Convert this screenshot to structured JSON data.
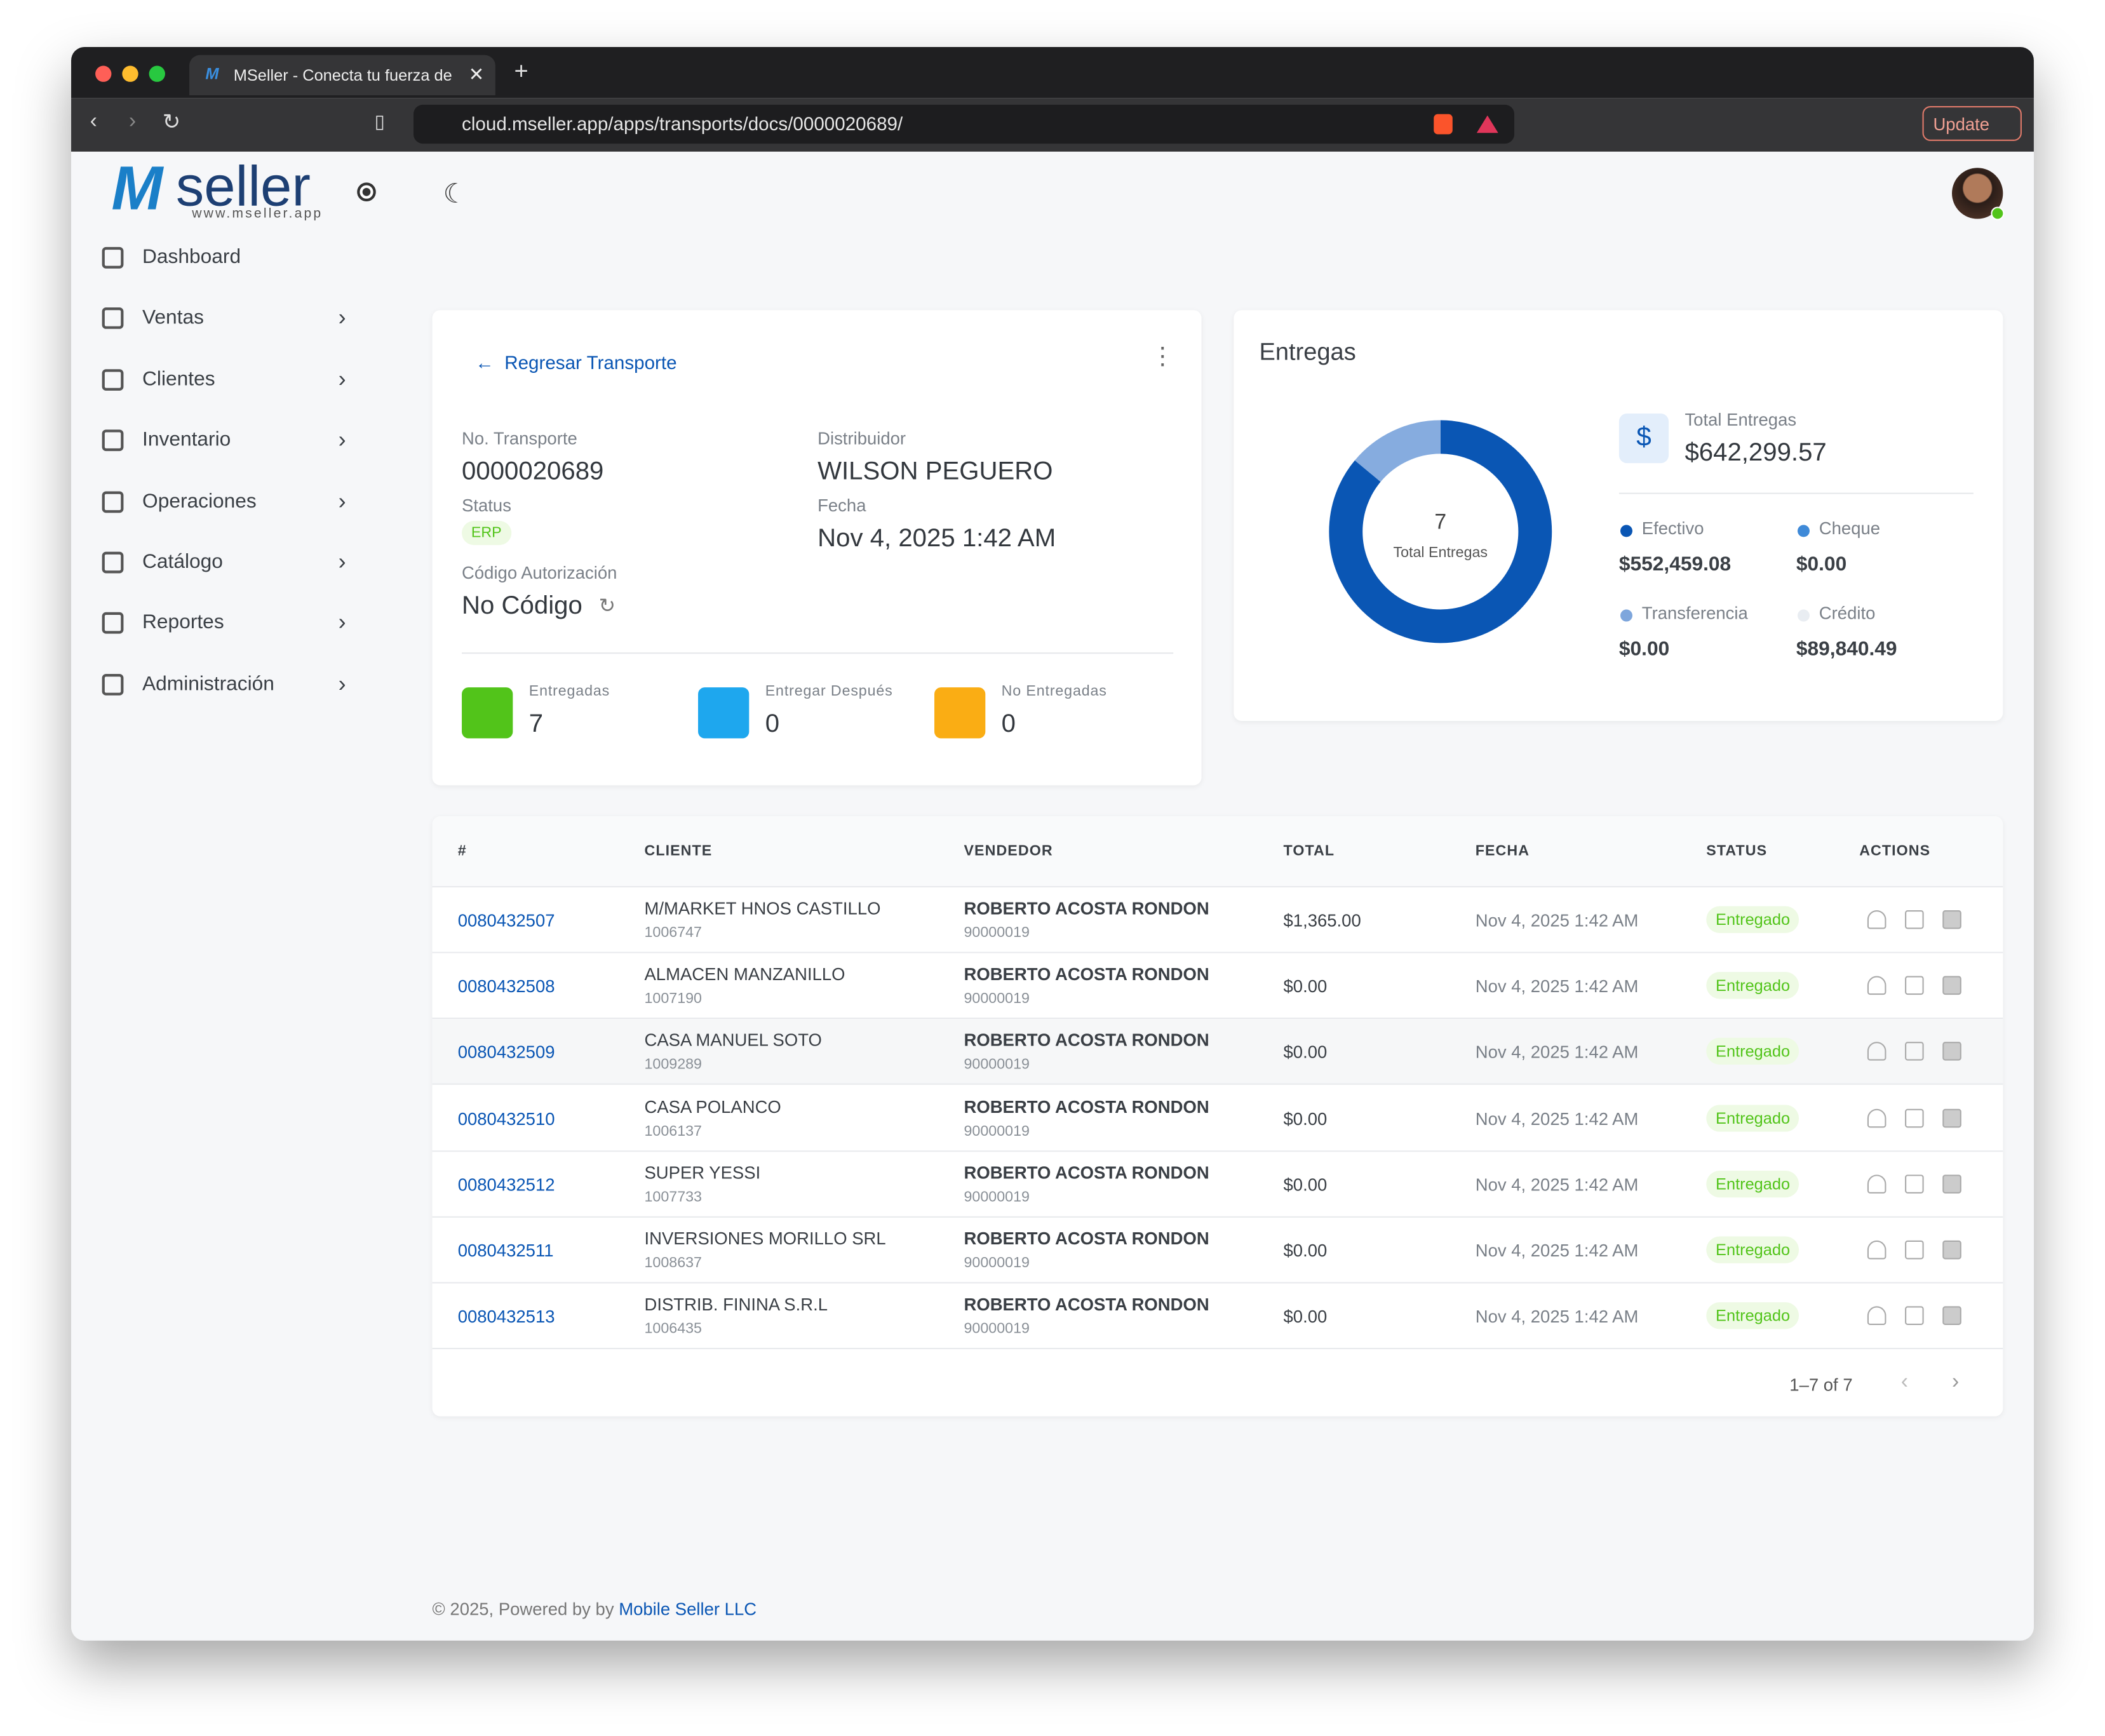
{
  "browser": {
    "tab_title": "MSeller - Conecta tu fuerza de",
    "url": "cloud.mseller.app/apps/transports/docs/0000020689/",
    "update": "Update"
  },
  "logo": {
    "mark": "M",
    "text": "seller",
    "site": "www.mseller.app"
  },
  "sidebar": [
    "Dashboard",
    "Ventas",
    "Clientes",
    "Inventario",
    "Operaciones",
    "Catálogo",
    "Reportes",
    "Administración"
  ],
  "transport": {
    "back": "Regresar Transporte",
    "number_label": "No. Transporte",
    "number": "0000020689",
    "distributor_label": "Distribuidor",
    "distributor": "WILSON PEGUERO",
    "status_label": "Status",
    "status": "ERP",
    "date_label": "Fecha",
    "date": "Nov 4, 2025 1:42 AM",
    "auth_label": "Código Autorización",
    "auth": "No Código",
    "stats": [
      {
        "label": "Entregadas",
        "value": 7,
        "color": "#52c41a"
      },
      {
        "label": "Entregar Después",
        "value": 0,
        "color": "#1ea7ee"
      },
      {
        "label": "No Entregadas",
        "value": 0,
        "color": "#faad14"
      }
    ]
  },
  "deliveries": {
    "title": "Entregas",
    "center_value": 7,
    "center_label": "Total Entregas",
    "total_label": "Total Entregas",
    "total": "$642,299.57",
    "methods": [
      {
        "name": "Efectivo",
        "color": "#0a56b4",
        "value": 552459.08,
        "label": "$552,459.08"
      },
      {
        "name": "Cheque",
        "color": "#3f8ad8",
        "value": 0,
        "label": "$0.00"
      },
      {
        "name": "Transferencia",
        "color": "#7ea6dc",
        "value": 0,
        "label": "$0.00"
      },
      {
        "name": "Crédito",
        "color": "#86acdf",
        "value": 89840.49,
        "label": "$89,840.49"
      }
    ]
  },
  "table": {
    "headers": [
      "#",
      "CLIENTE",
      "VENDEDOR",
      "TOTAL",
      "FECHA",
      "STATUS",
      "ACTIONS"
    ],
    "rows": [
      [
        "0080432507",
        "M/MARKET HNOS CASTILLO",
        "1006747",
        "ROBERTO ACOSTA RONDON",
        "90000019",
        "$1,365.00",
        "Nov 4, 2025 1:42 AM",
        "Entregado"
      ],
      [
        "0080432508",
        "ALMACEN MANZANILLO",
        "1007190",
        "ROBERTO ACOSTA RONDON",
        "90000019",
        "$0.00",
        "Nov 4, 2025 1:42 AM",
        "Entregado"
      ],
      [
        "0080432509",
        "CASA MANUEL SOTO",
        "1009289",
        "ROBERTO ACOSTA RONDON",
        "90000019",
        "$0.00",
        "Nov 4, 2025 1:42 AM",
        "Entregado"
      ],
      [
        "0080432510",
        "CASA POLANCO",
        "1006137",
        "ROBERTO ACOSTA RONDON",
        "90000019",
        "$0.00",
        "Nov 4, 2025 1:42 AM",
        "Entregado"
      ],
      [
        "0080432512",
        "SUPER YESSI",
        "1007733",
        "ROBERTO ACOSTA RONDON",
        "90000019",
        "$0.00",
        "Nov 4, 2025 1:42 AM",
        "Entregado"
      ],
      [
        "0080432511",
        "INVERSIONES MORILLO SRL",
        "1008637",
        "ROBERTO ACOSTA RONDON",
        "90000019",
        "$0.00",
        "Nov 4, 2025 1:42 AM",
        "Entregado"
      ],
      [
        "0080432513",
        "DISTRIB. FININA S.R.L",
        "1006435",
        "ROBERTO ACOSTA RONDON",
        "90000019",
        "$0.00",
        "Nov 4, 2025 1:42 AM",
        "Entregado"
      ]
    ],
    "pagination": "1–7 of 7"
  },
  "footer": {
    "text": "© 2025, Powered by by",
    "link": "Mobile Seller LLC"
  }
}
